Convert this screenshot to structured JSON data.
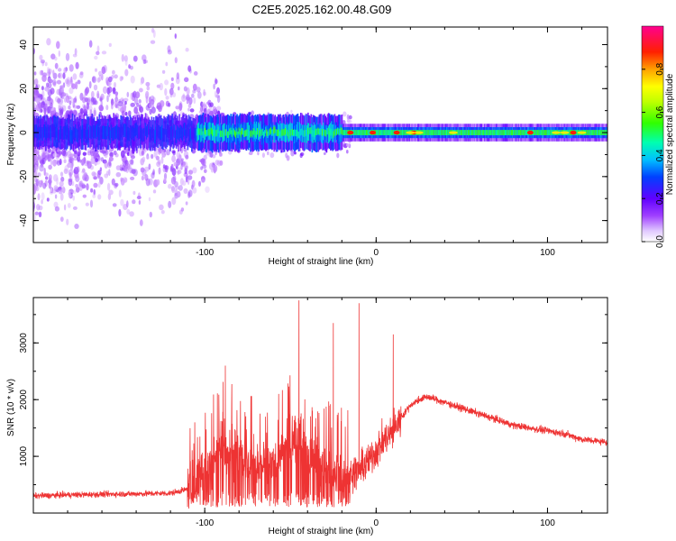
{
  "title": "C2E5.2025.162.00.48.G09",
  "chart_data": [
    {
      "type": "heatmap",
      "xlabel": "Height of straight line (km)",
      "ylabel": "Frequency (Hz)",
      "xlim": [
        -200,
        135
      ],
      "ylim": [
        -50,
        48
      ],
      "x_ticks": [
        -100,
        0,
        100
      ],
      "y_ticks": [
        -40,
        -20,
        0,
        20,
        40
      ],
      "colorbar": {
        "label": "Normalized spectral amplitude",
        "ticks": [
          0.0,
          0.2,
          0.4,
          0.6,
          0.8
        ],
        "range": [
          0,
          1
        ],
        "colormap": [
          "#ffffff",
          "#c080ff",
          "#6600ff",
          "#0040ff",
          "#00c0ff",
          "#00ffa0",
          "#40ff00",
          "#ffff00",
          "#ffa000",
          "#ff2000",
          "#ff0080"
        ]
      },
      "description_points": {
        "band_center_hz": 0,
        "noisy_region_km": [
          -200,
          -105
        ],
        "ridge_region_km": [
          -20,
          135
        ],
        "peak_amplitude_near_km": [
          -15,
          -2,
          12,
          22,
          90,
          115
        ]
      }
    },
    {
      "type": "line",
      "xlabel": "Height of straight line (km)",
      "ylabel": "SNR (10 * v/v)",
      "xlim": [
        -200,
        135
      ],
      "ylim": [
        0,
        3800
      ],
      "x_ticks": [
        -100,
        0,
        100
      ],
      "y_ticks": [
        1000,
        2000,
        3000
      ],
      "line_color": "#ee3333",
      "series": [
        {
          "name": "SNR",
          "x": [
            -200,
            -180,
            -160,
            -140,
            -120,
            -110,
            -105,
            -100,
            -95,
            -90,
            -85,
            -80,
            -75,
            -70,
            -65,
            -60,
            -55,
            -50,
            -45,
            -40,
            -35,
            -30,
            -25,
            -20,
            -15,
            -10,
            -5,
            0,
            5,
            10,
            15,
            20,
            25,
            30,
            35,
            40,
            50,
            60,
            70,
            80,
            90,
            100,
            110,
            120,
            135
          ],
          "values": [
            300,
            320,
            330,
            340,
            350,
            420,
            550,
            700,
            1000,
            1100,
            1050,
            950,
            900,
            750,
            850,
            800,
            1100,
            1200,
            1400,
            1000,
            900,
            800,
            700,
            650,
            700,
            750,
            900,
            1100,
            1300,
            1450,
            1700,
            1900,
            2000,
            2050,
            2000,
            1950,
            1850,
            1750,
            1650,
            1550,
            1500,
            1450,
            1400,
            1300,
            1250
          ]
        }
      ],
      "notable_spikes": [
        {
          "x": -45,
          "value": 3750
        },
        {
          "x": -10,
          "value": 3700
        },
        {
          "x": 10,
          "value": 3150
        },
        {
          "x": -25,
          "value": 3350
        },
        {
          "x": -88,
          "value": 2600
        }
      ]
    }
  ]
}
